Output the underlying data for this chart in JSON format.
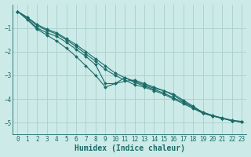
{
  "xlabel": "Humidex (Indice chaleur)",
  "bg_color": "#cceae7",
  "grid_color": "#aacfcc",
  "line_color": "#1a6b68",
  "xlim": [
    -0.5,
    23.5
  ],
  "ylim": [
    -5.5,
    -0.0
  ],
  "xticks": [
    0,
    1,
    2,
    3,
    4,
    5,
    6,
    7,
    8,
    9,
    10,
    11,
    12,
    13,
    14,
    15,
    16,
    17,
    18,
    19,
    20,
    21,
    22,
    23
  ],
  "yticks": [
    -5,
    -4,
    -3,
    -2,
    -1
  ],
  "series": [
    {
      "x": [
        0,
        1,
        2,
        3,
        4,
        5,
        6,
        7,
        8,
        9,
        10,
        11,
        12,
        13,
        14,
        15,
        16,
        17,
        18,
        19,
        20,
        21,
        22,
        23
      ],
      "y": [
        -0.3,
        -0.55,
        -0.85,
        -1.05,
        -1.2,
        -1.45,
        -1.7,
        -2.0,
        -2.3,
        -2.6,
        -2.9,
        -3.1,
        -3.3,
        -3.45,
        -3.6,
        -3.75,
        -3.95,
        -4.15,
        -4.35,
        -4.55,
        -4.7,
        -4.8,
        -4.9,
        -4.95
      ],
      "marker": "D",
      "markersize": 2.0,
      "linewidth": 0.8,
      "linestyle": "-"
    },
    {
      "x": [
        0,
        1,
        2,
        3,
        4,
        5,
        6,
        7,
        8,
        9,
        10,
        11,
        12,
        13,
        14,
        15,
        16,
        17,
        18,
        19,
        20,
        21,
        22,
        23
      ],
      "y": [
        -0.3,
        -0.55,
        -0.9,
        -1.1,
        -1.25,
        -1.5,
        -1.78,
        -2.1,
        -2.4,
        -2.75,
        -3.0,
        -3.2,
        -3.4,
        -3.5,
        -3.65,
        -3.8,
        -4.0,
        -4.2,
        -4.4,
        -4.6,
        -4.72,
        -4.82,
        -4.92,
        -4.97
      ],
      "marker": "D",
      "markersize": 2.0,
      "linewidth": 0.8,
      "linestyle": "-"
    },
    {
      "x": [
        0,
        1,
        2,
        3,
        4,
        5,
        6,
        7,
        8,
        9,
        10,
        11,
        12,
        13,
        14,
        15,
        16,
        17,
        18,
        19,
        20,
        21,
        22,
        23
      ],
      "y": [
        -0.3,
        -0.6,
        -1.0,
        -1.2,
        -1.35,
        -1.6,
        -1.9,
        -2.2,
        -2.55,
        -3.35,
        -3.35,
        -3.25,
        -3.2,
        -3.35,
        -3.5,
        -3.65,
        -3.85,
        -4.1,
        -4.35,
        -4.6,
        -4.72,
        -4.82,
        -4.92,
        -4.97
      ],
      "marker": "D",
      "markersize": 2.0,
      "linewidth": 0.8,
      "linestyle": "-"
    },
    {
      "x": [
        0,
        1,
        2,
        3,
        4,
        5,
        6,
        7,
        8,
        9,
        10,
        11,
        12,
        13,
        14,
        15,
        16,
        17,
        18,
        19,
        20,
        21,
        22,
        23
      ],
      "y": [
        -0.3,
        -0.65,
        -1.05,
        -1.3,
        -1.55,
        -1.85,
        -2.2,
        -2.6,
        -3.0,
        -3.5,
        -3.35,
        -3.1,
        -3.25,
        -3.4,
        -3.55,
        -3.65,
        -3.8,
        -4.05,
        -4.3,
        -4.58,
        -4.7,
        -4.82,
        -4.92,
        -4.97
      ],
      "marker": "D",
      "markersize": 2.0,
      "linewidth": 0.8,
      "linestyle": "-"
    }
  ],
  "tick_fontsize": 5.5,
  "label_fontsize": 7.0
}
